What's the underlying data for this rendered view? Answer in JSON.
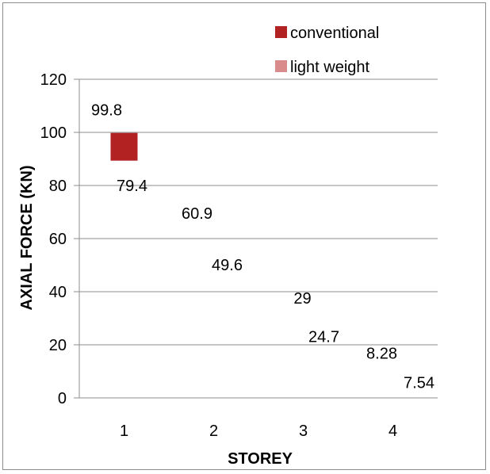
{
  "chart_data": {
    "type": "bar",
    "title": "",
    "xlabel": "STOREY",
    "ylabel": "AXIAL FORCE (KN)",
    "categories": [
      "1",
      "2",
      "3",
      "4"
    ],
    "yticks": [
      "0",
      "20",
      "40",
      "60",
      "80",
      "100",
      "120"
    ],
    "ylim": [
      0,
      120
    ],
    "grid": true,
    "legend_position": "top-right",
    "series": [
      {
        "name": "conventional",
        "color": "#b22222",
        "values": [
          99.8,
          60.9,
          29,
          8.28
        ],
        "labels": [
          "99.8",
          "60.9",
          "29",
          "8.28"
        ]
      },
      {
        "name": "light weight",
        "color": "#d98a8a",
        "values": [
          79.4,
          49.6,
          24.7,
          7.54
        ],
        "labels": [
          "79.4",
          "49.6",
          "24.7",
          "7.54"
        ]
      }
    ]
  }
}
